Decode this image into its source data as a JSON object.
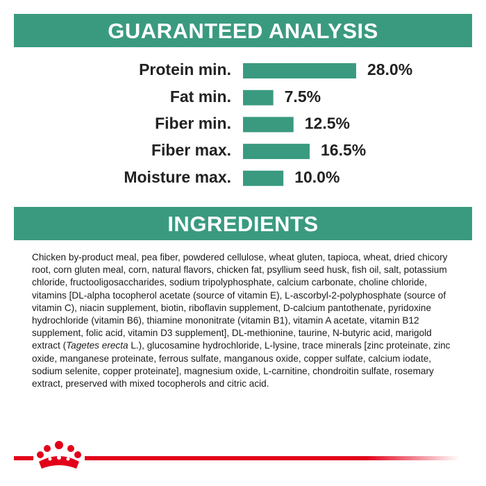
{
  "analysis": {
    "title": "GUARANTEED ANALYSIS",
    "rows": [
      {
        "label": "Protein min.",
        "value": 28.0,
        "value_label": "28.0%"
      },
      {
        "label": "Fat min.",
        "value": 7.5,
        "value_label": "7.5%"
      },
      {
        "label": "Fiber min.",
        "value": 12.5,
        "value_label": "12.5%"
      },
      {
        "label": "Fiber max.",
        "value": 16.5,
        "value_label": "16.5%"
      },
      {
        "label": "Moisture max.",
        "value": 10.0,
        "value_label": "10.0%"
      }
    ]
  },
  "ingredients": {
    "title": "INGREDIENTS",
    "text": [
      "Chicken by-product meal, pea fiber, powdered cellulose, wheat gluten, tapioca, wheat, dried chicory root, corn gluten meal, corn, natural flavors, chicken fat, psyllium seed husk, fish oil, salt, potassium chloride, fructooligosaccharides, sodium tripolyphosphate, calcium carbonate, choline chloride, vitamins [DL-alpha tocopherol acetate (source of vitamin E), L-ascorbyl-2-polyphosphate (source of vitamin C), niacin supplement, biotin, riboflavin supplement, D-calcium pantothenate, pyridoxine hydrochloride (vitamin B6), thiamine mononitrate (vitamin B1), vitamin A acetate, vitamin B12 supplement, folic acid, vitamin D3 supplement], DL-methionine, taurine, N-butyric acid, marigold extract (",
      "Tagetes erecta",
      " L.), glucosamine hydrochloride, L-lysine, trace minerals [zinc proteinate, zinc oxide, manganese proteinate, ferrous sulfate, manganous oxide, copper sulfate, calcium iodate, sodium selenite, copper proteinate], magnesium oxide, L-carnitine, chondroitin sulfate, rosemary extract, preserved with mixed tocopherols and citric acid."
    ]
  }
}
